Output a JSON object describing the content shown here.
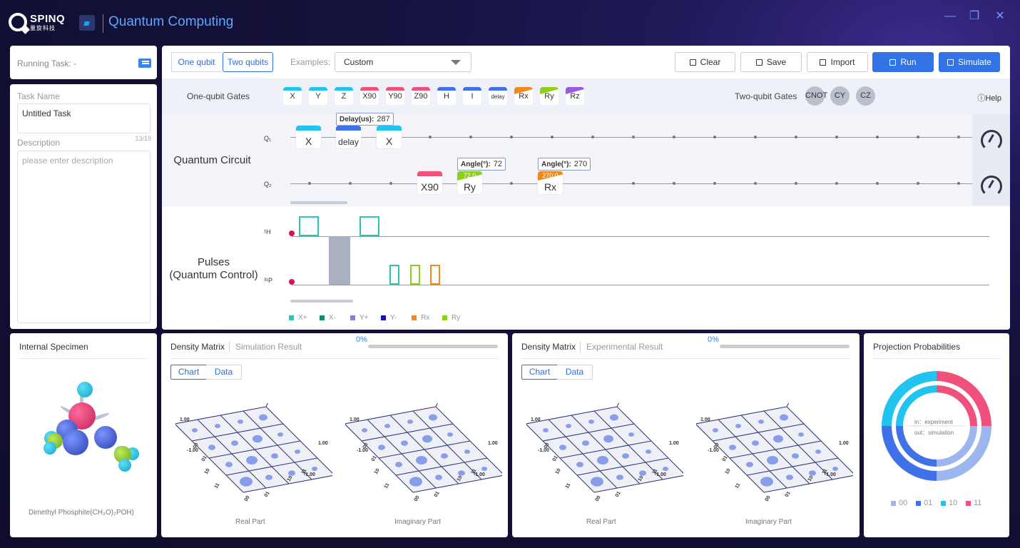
{
  "app": {
    "brand": "SPINQ",
    "brand_sub": "量旋科技",
    "title": "Quantum Computing",
    "window_controls": [
      "minimize-icon",
      "restore-icon",
      "close-icon"
    ]
  },
  "task": {
    "running_label": "Running Task: -"
  },
  "form": {
    "name_label": "Task Name",
    "name_value": "Untitled Task",
    "counter": "13/19",
    "desc_label": "Description",
    "desc_placeholder": "please enter description"
  },
  "toolbar": {
    "tab_one": "One qubit",
    "tab_two": "Two qubits",
    "examples_label": "Examples:",
    "examples_value": "Custom",
    "clear": "Clear",
    "save": "Save",
    "import": "Import",
    "run": "Run",
    "simulate": "Simulate"
  },
  "gates": {
    "one_label": "One-qubit Gates",
    "one": [
      {
        "label": "X",
        "color": "#20c4ef"
      },
      {
        "label": "Y",
        "color": "#20c4ef"
      },
      {
        "label": "Z",
        "color": "#20c4ef"
      },
      {
        "label": "X90",
        "color": "#f0507c"
      },
      {
        "label": "Y90",
        "color": "#f0507c"
      },
      {
        "label": "Z90",
        "color": "#f0507c"
      },
      {
        "label": "H",
        "color": "#3f72e8"
      },
      {
        "label": "I",
        "color": "#3f72e8"
      },
      {
        "label": "delay",
        "color": "#3f72e8"
      },
      {
        "label": "Rx",
        "color": "#f08a1a"
      },
      {
        "label": "Ry",
        "color": "#8ecf1a"
      },
      {
        "label": "Rz",
        "color": "#9b5be0"
      }
    ],
    "two_label": "Two-qubit Gates",
    "two": [
      "CNOT",
      "CY",
      "CZ"
    ],
    "help": "Help"
  },
  "circuit": {
    "label": "Quantum Circuit",
    "q1": "Q₁",
    "q2": "Q₂",
    "q1_gates": [
      {
        "label": "X",
        "color": "#20c4ef"
      },
      {
        "label": "delay",
        "color": "#3f72e8"
      },
      {
        "label": "X",
        "color": "#20c4ef"
      }
    ],
    "delay_param": {
      "label": "Delay(us):",
      "value": "287"
    },
    "q2_gates": [
      {
        "label": "X90",
        "color": "#f0507c",
        "value": ""
      },
      {
        "label": "Ry",
        "color": "#8ecf1a",
        "value": "72.0"
      },
      {
        "label": "Rx",
        "color": "#f08a1a",
        "value": "270.0"
      }
    ],
    "ry_param": {
      "label": "Angle(°):",
      "value": "72"
    },
    "rx_param": {
      "label": "Angle(°):",
      "value": "270"
    }
  },
  "pulses": {
    "label_line1": "Pulses",
    "label_line2": "(Quantum Control)",
    "ch1": "¹H",
    "ch2": "³¹P",
    "legend": [
      {
        "label": "X+",
        "color": "#2ec4b0"
      },
      {
        "label": "X-",
        "color": "#138a6e"
      },
      {
        "label": "Y+",
        "color": "#8c7ae6"
      },
      {
        "label": "Y-",
        "color": "#1a12a8"
      },
      {
        "label": "Rx",
        "color": "#f08a1a"
      },
      {
        "label": "Ry",
        "color": "#8ecf1a"
      }
    ]
  },
  "specimen": {
    "title": "Internal Specimen",
    "caption": "Dimethyl Phosphite(CH₃O)₂POH)"
  },
  "sim": {
    "title": "Density Matrix",
    "subtitle": "Simulation Result",
    "progress": "0%",
    "tab_chart": "Chart",
    "tab_data": "Data",
    "real": "Real Part",
    "imag": "Imaginary Part"
  },
  "exp": {
    "title": "Density Matrix",
    "subtitle": "Experimental Result",
    "progress": "0%",
    "tab_chart": "Chart",
    "tab_data": "Data",
    "real": "Real Part",
    "imag": "Imaginary Part"
  },
  "axes": {
    "top": "1.00",
    "right": "1.00",
    "neg": "-1.00",
    "r00": "00",
    "r01": "01",
    "r10": "10",
    "r11": "11"
  },
  "proj": {
    "title": "Projection Probabilities",
    "inner": "in：experiment",
    "outer": "out：simulation",
    "legend": [
      {
        "label": "00",
        "color": "#9db7ee"
      },
      {
        "label": "01",
        "color": "#3f72e8"
      },
      {
        "label": "10",
        "color": "#20c4ef"
      },
      {
        "label": "11",
        "color": "#f0507c"
      }
    ]
  }
}
